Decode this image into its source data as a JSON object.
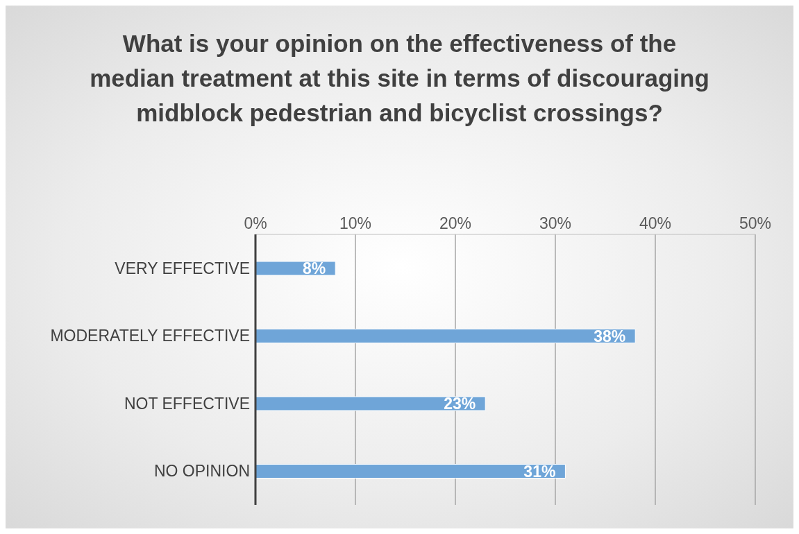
{
  "chart_data": {
    "type": "bar",
    "orientation": "horizontal",
    "title": "What is your opinion on the effectiveness of the median treatment at this site in terms of discouraging midblock pedestrian and bicyclist crossings?",
    "categories": [
      "VERY EFFECTIVE",
      "MODERATELY EFFECTIVE",
      "NOT EFFECTIVE",
      "NO OPINION"
    ],
    "values": [
      8,
      38,
      23,
      31
    ],
    "color": "#6fa5d8",
    "xlim": [
      0,
      50
    ],
    "xticks": [
      {
        "value": 0,
        "label": "0%"
      },
      {
        "value": 10,
        "label": "10%"
      },
      {
        "value": 20,
        "label": "20%"
      },
      {
        "value": 30,
        "label": "30%"
      },
      {
        "value": 40,
        "label": "40%"
      },
      {
        "value": 50,
        "label": "50%"
      }
    ],
    "value_labels": [
      "8%",
      "38%",
      "23%",
      "31%"
    ],
    "grid": "x",
    "legend": false
  }
}
